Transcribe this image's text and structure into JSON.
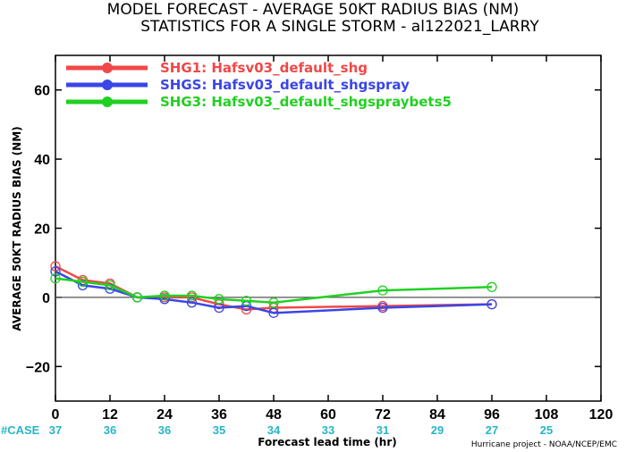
{
  "chart_data": {
    "type": "line",
    "title": "MODEL FORECAST - AVERAGE 50KT RADIUS BIAS (NM)",
    "subtitle": "STATISTICS FOR A SINGLE STORM - al122021_LARRY",
    "xlabel": "Forecast lead time (hr)",
    "ylabel": "AVERAGE 50KT RADIUS BIAS (NM)",
    "xlim": [
      0,
      120
    ],
    "ylim": [
      -30,
      70
    ],
    "xticks": [
      0,
      12,
      24,
      36,
      48,
      60,
      72,
      84,
      96,
      108,
      120
    ],
    "yticks": [
      -20,
      0,
      20,
      40,
      60
    ],
    "grid": false,
    "zero_line": true,
    "legend_position": "top-left",
    "case_label": "#CASE",
    "case_counts": [
      {
        "x": 0,
        "n": "37"
      },
      {
        "x": 12,
        "n": "36"
      },
      {
        "x": 24,
        "n": "36"
      },
      {
        "x": 36,
        "n": "35"
      },
      {
        "x": 48,
        "n": "34"
      },
      {
        "x": 60,
        "n": "33"
      },
      {
        "x": 72,
        "n": "31"
      },
      {
        "x": 84,
        "n": "29"
      },
      {
        "x": 96,
        "n": "27"
      },
      {
        "x": 108,
        "n": "25"
      }
    ],
    "series": [
      {
        "name": "SHG1: Hafsv03_default_shg",
        "color": "#f04848",
        "points": [
          [
            0,
            9
          ],
          [
            6,
            5
          ],
          [
            12,
            4
          ],
          [
            18,
            0
          ],
          [
            24,
            0
          ],
          [
            30,
            0
          ],
          [
            36,
            -2
          ],
          [
            42,
            -3.5
          ],
          [
            48,
            -3
          ],
          [
            72,
            -2.5
          ],
          [
            96,
            -2
          ]
        ]
      },
      {
        "name": "SHGS: Hafsv03_default_shgspray",
        "color": "#3a46e6",
        "points": [
          [
            0,
            7.5
          ],
          [
            6,
            3.5
          ],
          [
            12,
            2.5
          ],
          [
            18,
            0
          ],
          [
            24,
            -0.5
          ],
          [
            30,
            -1.5
          ],
          [
            36,
            -3
          ],
          [
            42,
            -2.5
          ],
          [
            48,
            -4.5
          ],
          [
            72,
            -3
          ],
          [
            96,
            -2
          ]
        ]
      },
      {
        "name": "SHG3: Hafsv03_default_shgspraybets5",
        "color": "#22d022",
        "points": [
          [
            0,
            5.5
          ],
          [
            6,
            4.5
          ],
          [
            12,
            3.5
          ],
          [
            18,
            0
          ],
          [
            24,
            0.5
          ],
          [
            30,
            0.5
          ],
          [
            36,
            -0.5
          ],
          [
            42,
            -1
          ],
          [
            48,
            -1.5
          ],
          [
            72,
            2
          ],
          [
            96,
            3
          ]
        ]
      }
    ]
  },
  "footer": {
    "credit": "Hurricane project - NOAA/NCEP/EMC"
  }
}
